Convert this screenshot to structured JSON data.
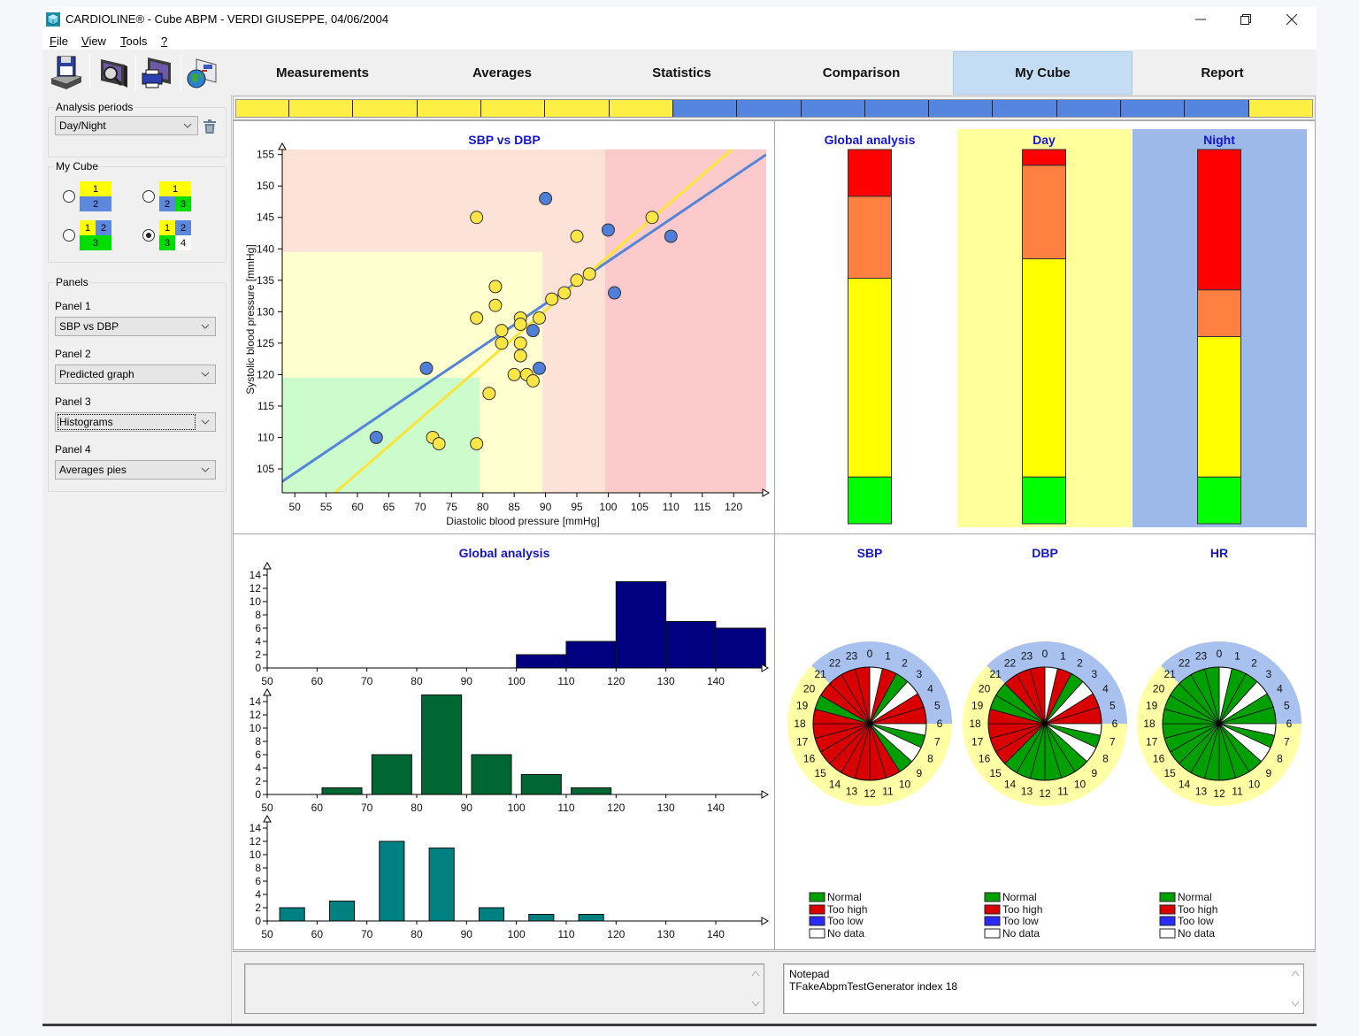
{
  "window": {
    "title": "CARDIOLINE® - Cube ABPM - VERDI GIUSEPPE, 04/06/2004",
    "controls": [
      {
        "icon": "minimize-icon"
      },
      {
        "icon": "restore-icon"
      },
      {
        "icon": "close-icon"
      }
    ]
  },
  "menu": [
    {
      "accel": "F",
      "rest": "ile"
    },
    {
      "accel": "V",
      "rest": "iew"
    },
    {
      "accel": "T",
      "rest": "ools"
    },
    {
      "accel": "?",
      "rest": ""
    }
  ],
  "toolbar": {
    "buttons": [
      {
        "icon": "save-icon"
      },
      {
        "icon": "print-preview-icon"
      },
      {
        "icon": "print-icon"
      },
      {
        "icon": "export-web-icon"
      }
    ]
  },
  "tabs": [
    {
      "label": "Measurements",
      "active": false
    },
    {
      "label": "Averages",
      "active": false
    },
    {
      "label": "Statistics",
      "active": false
    },
    {
      "label": "Comparison",
      "active": false
    },
    {
      "label": "My Cube",
      "active": true
    },
    {
      "label": "Report",
      "active": false
    }
  ],
  "sidebar": {
    "analysis_periods": {
      "label": "Analysis periods",
      "value": "Day/Night",
      "delete_icon": "trash-icon"
    },
    "my_cube": {
      "label": "My Cube",
      "selected_index": 3,
      "options": [
        {
          "cells": [
            {
              "label": "1",
              "color": "#ffff00"
            },
            {
              "label": "2",
              "color": "#5b87dd"
            }
          ]
        },
        {
          "cells": [
            {
              "label": "1",
              "color": "#ffff00"
            },
            {
              "label": "2",
              "color": "#5b87dd"
            },
            {
              "label": "3",
              "color": "#00dd00"
            }
          ]
        },
        {
          "cells": [
            {
              "label": "1",
              "color": "#ffff00"
            },
            {
              "label": "2",
              "color": "#5b87dd"
            },
            {
              "label": "3",
              "color": "#00dd00"
            }
          ]
        },
        {
          "cells": [
            {
              "label": "1",
              "color": "#ffff00"
            },
            {
              "label": "2",
              "color": "#5b87dd"
            },
            {
              "label": "3",
              "color": "#00dd00"
            },
            {
              "label": "4",
              "color": "#ffffff"
            }
          ]
        }
      ]
    },
    "panels": {
      "label": "Panels",
      "items": [
        {
          "label": "Panel 1",
          "value": "SBP vs DBP"
        },
        {
          "label": "Panel 2",
          "value": "Predicted graph"
        },
        {
          "label": "Panel 3",
          "value": "Histograms"
        },
        {
          "label": "Panel 4",
          "value": "Averages pies"
        }
      ]
    }
  },
  "timeline": {
    "segments": [
      {
        "color": "#ffee44",
        "weight": 0.83
      },
      {
        "color": "#ffee44",
        "weight": 1
      },
      {
        "color": "#ffee44",
        "weight": 1
      },
      {
        "color": "#ffee44",
        "weight": 1
      },
      {
        "color": "#ffee44",
        "weight": 1
      },
      {
        "color": "#ffee44",
        "weight": 1
      },
      {
        "color": "#ffee44",
        "weight": 1
      },
      {
        "color": "#5685e0",
        "weight": 1
      },
      {
        "color": "#5685e0",
        "weight": 1
      },
      {
        "color": "#5685e0",
        "weight": 1
      },
      {
        "color": "#5685e0",
        "weight": 1
      },
      {
        "color": "#5685e0",
        "weight": 1
      },
      {
        "color": "#5685e0",
        "weight": 1
      },
      {
        "color": "#5685e0",
        "weight": 1
      },
      {
        "color": "#5685e0",
        "weight": 1
      },
      {
        "color": "#5685e0",
        "weight": 1
      },
      {
        "color": "#ffee44",
        "weight": 1
      }
    ]
  },
  "chart_data": [
    {
      "type": "scatter",
      "title": "SBP vs DBP",
      "xlabel": "Diastolic blood pressure [mmHg]",
      "ylabel": "Systolic blood pressure [mmHg]",
      "xlim": [
        48,
        125.2
      ],
      "ylim": [
        101.2,
        155.8
      ],
      "xticks": [
        50,
        55,
        60,
        65,
        70,
        75,
        80,
        85,
        90,
        95,
        100,
        105,
        110,
        115,
        120
      ],
      "yticks": [
        105,
        110,
        115,
        120,
        125,
        130,
        135,
        140,
        145,
        150,
        155
      ],
      "grid": false,
      "zones": [
        {
          "name": "salmon",
          "x": [
            48,
            125.2
          ],
          "y": [
            101.2,
            155.8
          ],
          "color": "#fde2d8"
        },
        {
          "name": "pink",
          "x": [
            99.5,
            125.2
          ],
          "y": [
            101.2,
            155.8
          ],
          "color": "#fdcacb"
        },
        {
          "name": "yellow",
          "x": [
            48,
            89.5
          ],
          "y": [
            101.2,
            139.5
          ],
          "color": "#ffffcf"
        },
        {
          "name": "green",
          "x": [
            48,
            79.5
          ],
          "y": [
            101.2,
            119.5
          ],
          "color": "#ccfbcc"
        }
      ],
      "series": [
        {
          "name": "day",
          "color": "#f9e546",
          "points": [
            [
              79,
              145
            ],
            [
              95,
              142
            ],
            [
              107,
              145
            ],
            [
              97,
              136
            ],
            [
              95,
              135
            ],
            [
              93,
              133
            ],
            [
              91,
              132
            ],
            [
              89,
              129
            ],
            [
              82,
              134
            ],
            [
              82,
              131
            ],
            [
              79,
              129
            ],
            [
              83,
              127
            ],
            [
              86,
              129
            ],
            [
              86,
              128
            ],
            [
              83,
              125
            ],
            [
              86,
              125
            ],
            [
              86,
              123
            ],
            [
              85,
              120
            ],
            [
              87,
              120
            ],
            [
              88,
              119
            ],
            [
              81,
              117
            ],
            [
              72,
              110
            ],
            [
              73,
              109
            ],
            [
              79,
              109
            ]
          ]
        },
        {
          "name": "night",
          "color": "#4f7fd8",
          "points": [
            [
              90,
              148
            ],
            [
              100,
              143
            ],
            [
              110,
              142
            ],
            [
              101,
              133
            ],
            [
              88,
              127
            ],
            [
              89,
              121
            ],
            [
              71,
              121
            ],
            [
              63,
              110
            ]
          ]
        }
      ],
      "lines": [
        {
          "series": "night",
          "color": "#5585d8",
          "from": [
            48,
            103.0
          ],
          "to": [
            125.2,
            155.0
          ]
        },
        {
          "series": "day",
          "color": "#fbe53a",
          "from": [
            56.4,
            101.2
          ],
          "to": [
            119.7,
            155.8
          ]
        }
      ]
    },
    {
      "type": "bar",
      "stacked": true,
      "unit": "percent",
      "categories": [
        "Global analysis",
        "Day",
        "Night"
      ],
      "column_backgrounds": [
        null,
        "#ffff9c",
        "#9db9ea"
      ],
      "series": [
        {
          "name": "red",
          "color": "#ff0000",
          "values": [
            12.5,
            4.2,
            37.5
          ]
        },
        {
          "name": "orange",
          "color": "#ff8040",
          "values": [
            21.9,
            25.0,
            12.5
          ]
        },
        {
          "name": "yellow",
          "color": "#ffff00",
          "values": [
            53.1,
            58.3,
            37.5
          ]
        },
        {
          "name": "green",
          "color": "#00ff00",
          "values": [
            12.5,
            12.5,
            12.5
          ]
        }
      ]
    },
    {
      "type": "bar",
      "title": "Global analysis",
      "xticks": [
        50,
        60,
        70,
        80,
        90,
        100,
        110,
        120,
        130,
        140
      ],
      "yticks": [
        0,
        2,
        4,
        6,
        8,
        10,
        12,
        14
      ],
      "xlim": [
        50,
        150
      ],
      "ylim": [
        0,
        14
      ],
      "subplots": [
        {
          "color": "#000080",
          "bins": [
            [
              100,
              110,
              2
            ],
            [
              110,
              120,
              4
            ],
            [
              120,
              130,
              13
            ],
            [
              130,
              140,
              7
            ],
            [
              140,
              150,
              6
            ]
          ]
        },
        {
          "color": "#006633",
          "bins": [
            [
              61,
              69,
              1
            ],
            [
              71,
              79,
              6
            ],
            [
              81,
              89,
              15
            ],
            [
              91,
              99,
              6
            ],
            [
              101,
              109,
              3
            ],
            [
              111,
              119,
              1
            ]
          ]
        },
        {
          "color": "#008080",
          "bins": [
            [
              52.5,
              57.5,
              2
            ],
            [
              62.5,
              67.5,
              3
            ],
            [
              72.5,
              77.5,
              12
            ],
            [
              82.5,
              87.5,
              11
            ],
            [
              92.5,
              97.5,
              2
            ],
            [
              102.5,
              107.5,
              1
            ],
            [
              112.5,
              117.5,
              1
            ]
          ]
        }
      ]
    },
    {
      "type": "pie",
      "hour_labels": [
        "0",
        "1",
        "2",
        "3",
        "4",
        "5",
        "6",
        "7",
        "8",
        "9",
        "10",
        "11",
        "12",
        "13",
        "14",
        "15",
        "16",
        "17",
        "18",
        "19",
        "20",
        "21",
        "22",
        "23"
      ],
      "slice_boundaries_deg": [
        0,
        13,
        28,
        42,
        58,
        73,
        90,
        102,
        115,
        132,
        148,
        163,
        180,
        195,
        210,
        225,
        240,
        255,
        270,
        285,
        300,
        315,
        330,
        345,
        360
      ],
      "ring": {
        "night_from_deg": 315,
        "night_to_deg": 90,
        "night_color": "#a9c1ee",
        "day_color": "#ffffa6"
      },
      "status_colors": {
        "N": "#00a000",
        "H": "#d80000",
        "L": "#2a2aff",
        "X": "#ffffff"
      },
      "legend": [
        {
          "key": "N",
          "label": "Normal"
        },
        {
          "key": "H",
          "label": "Too high"
        },
        {
          "key": "L",
          "label": "Too low"
        },
        {
          "key": "X",
          "label": "No data"
        }
      ],
      "charts": [
        {
          "title": "SBP",
          "slices": [
            "X",
            "H",
            "N",
            "X",
            "H",
            "H",
            "X",
            "N",
            "X",
            "N",
            "H",
            "H",
            "H",
            "H",
            "H",
            "H",
            "H",
            "H",
            "H",
            "N",
            "H",
            "H",
            "H",
            "H"
          ]
        },
        {
          "title": "DBP",
          "slices": [
            "X",
            "H",
            "N",
            "X",
            "H",
            "H",
            "X",
            "N",
            "X",
            "N",
            "N",
            "N",
            "N",
            "N",
            "N",
            "H",
            "H",
            "H",
            "H",
            "N",
            "N",
            "H",
            "H",
            "H"
          ]
        },
        {
          "title": "HR",
          "slices": [
            "X",
            "N",
            "N",
            "X",
            "N",
            "N",
            "X",
            "N",
            "X",
            "N",
            "N",
            "N",
            "N",
            "N",
            "N",
            "N",
            "N",
            "N",
            "N",
            "N",
            "N",
            "N",
            "N",
            "N"
          ]
        }
      ]
    }
  ],
  "bottom": {
    "left_text": "",
    "notepad": {
      "title": "Notepad",
      "line": "TFakeAbpmTestGenerator index 18"
    }
  }
}
